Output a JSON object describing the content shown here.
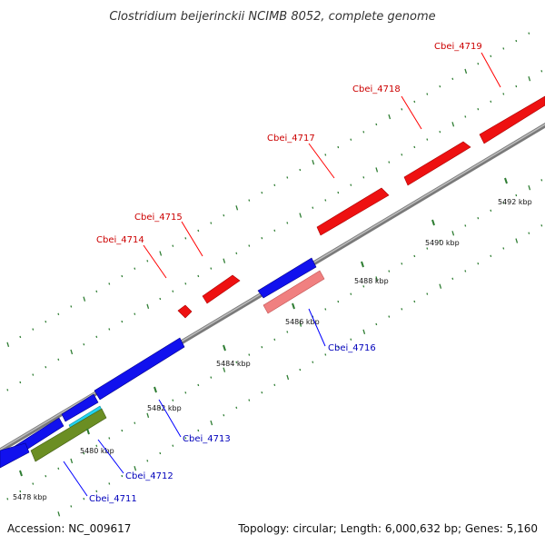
{
  "title": "Clostridium beijerinckii NCIMB 8052, complete genome",
  "footer": {
    "accession": "Accession: NC_009617",
    "topology": "Topology: circular; Length: 6,000,632 bp; Genes: 5,160"
  },
  "colors": {
    "backbone": "#888888",
    "tick": "#2e7d32",
    "forward_gene": "#ee1111",
    "reverse_gene": "#1111ee",
    "forward_label": "#cc0000",
    "reverse_label": "#0000bb",
    "leader": "#ff0000",
    "leader_reverse": "#0000ff"
  },
  "ticks": [
    {
      "label": "5478 kbp"
    },
    {
      "label": "5480 kbp"
    },
    {
      "label": "5482 kbp"
    },
    {
      "label": "5484 kbp"
    },
    {
      "label": "5486 kbp"
    },
    {
      "label": "5488 kbp"
    },
    {
      "label": "5490 kbp"
    },
    {
      "label": "5492 kbp"
    }
  ],
  "gene_labels": [
    {
      "text": "Cbei_4719",
      "strand": "forward"
    },
    {
      "text": "Cbei_4718",
      "strand": "forward"
    },
    {
      "text": "Cbei_4717",
      "strand": "forward"
    },
    {
      "text": "Cbei_4715",
      "strand": "forward"
    },
    {
      "text": "Cbei_4714",
      "strand": "forward"
    },
    {
      "text": "Cbei_4716",
      "strand": "reverse"
    },
    {
      "text": "Cbei_4713",
      "strand": "reverse"
    },
    {
      "text": "Cbei_4712",
      "strand": "reverse"
    },
    {
      "text": "Cbei_4711",
      "strand": "reverse"
    }
  ]
}
